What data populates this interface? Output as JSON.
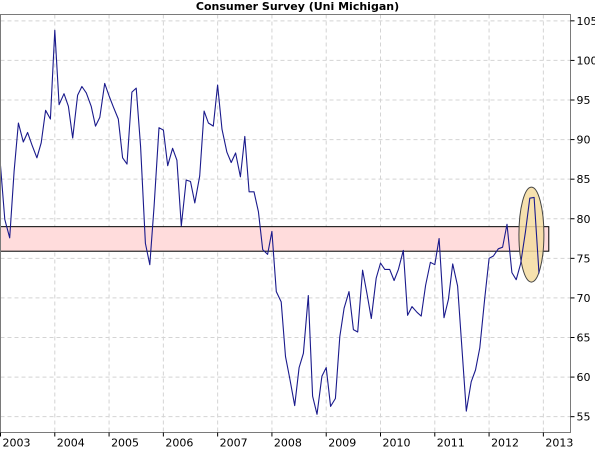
{
  "chart_data": {
    "type": "line",
    "title": "Consumer Survey (Uni Michigan)",
    "xlabel": "",
    "ylabel": "",
    "x_ticks": [
      "2003",
      "2004",
      "2005",
      "2006",
      "2007",
      "2008",
      "2009",
      "2010",
      "2011",
      "2012",
      "2013"
    ],
    "y_ticks": [
      55,
      60,
      65,
      70,
      75,
      80,
      85,
      90,
      95,
      100,
      105
    ],
    "xlim": [
      2003.0,
      2013.5
    ],
    "ylim": [
      53.0,
      105.8
    ],
    "y_axis_position": "right",
    "grid": true,
    "series_color": "#1a1a8c",
    "band_color": "#ffdcdc",
    "highlight_color": "#f5dca0",
    "band": {
      "y_low": 75.9,
      "y_high": 79.0,
      "x_start": 2003.0,
      "x_end": 2013.1
    },
    "highlight_ellipse": {
      "x_center": 2012.78,
      "y_center": 78.0,
      "x_radius": 0.23,
      "y_radius": 6.0
    },
    "series": [
      {
        "x": [
          2003.0,
          2003.08,
          2003.17,
          2003.25,
          2003.33,
          2003.42,
          2003.5,
          2003.58,
          2003.67,
          2003.75,
          2003.83,
          2003.92,
          2004.0,
          2004.08,
          2004.17,
          2004.25,
          2004.33,
          2004.42,
          2004.5,
          2004.58,
          2004.67,
          2004.75,
          2004.83,
          2004.92,
          2005.0,
          2005.08,
          2005.17,
          2005.25,
          2005.33,
          2005.42,
          2005.5,
          2005.58,
          2005.67,
          2005.75,
          2005.83,
          2005.92,
          2006.0,
          2006.08,
          2006.17,
          2006.25,
          2006.33,
          2006.42,
          2006.5,
          2006.58,
          2006.67,
          2006.75,
          2006.83,
          2006.92,
          2007.0,
          2007.08,
          2007.17,
          2007.25,
          2007.33,
          2007.42,
          2007.5,
          2007.58,
          2007.67,
          2007.75,
          2007.83,
          2007.92,
          2008.0,
          2008.08,
          2008.17,
          2008.25,
          2008.33,
          2008.42,
          2008.5,
          2008.58,
          2008.67,
          2008.75,
          2008.83,
          2008.92,
          2009.0,
          2009.08,
          2009.17,
          2009.25,
          2009.33,
          2009.42,
          2009.5,
          2009.58,
          2009.67,
          2009.75,
          2009.83,
          2009.92,
          2010.0,
          2010.08,
          2010.17,
          2010.25,
          2010.33,
          2010.42,
          2010.5,
          2010.58,
          2010.67,
          2010.75,
          2010.83,
          2010.92,
          2011.0,
          2011.08,
          2011.17,
          2011.25,
          2011.33,
          2011.42,
          2011.5,
          2011.58,
          2011.67,
          2011.75,
          2011.83,
          2011.92,
          2012.0,
          2012.08,
          2012.17,
          2012.25,
          2012.33,
          2012.42,
          2012.5,
          2012.58,
          2012.67,
          2012.75,
          2012.83,
          2012.92
        ],
        "y": [
          86.7,
          79.9,
          77.6,
          86.0,
          92.1,
          89.7,
          90.9,
          89.3,
          87.7,
          89.6,
          93.7,
          92.6,
          103.8,
          94.4,
          95.8,
          94.2,
          90.2,
          95.6,
          96.7,
          95.9,
          94.2,
          91.7,
          92.8,
          97.1,
          95.5,
          94.1,
          92.6,
          87.7,
          86.9,
          96.0,
          96.5,
          89.1,
          76.9,
          74.2,
          81.6,
          91.5,
          91.2,
          86.7,
          88.9,
          87.4,
          79.1,
          84.9,
          84.7,
          82.0,
          85.4,
          93.6,
          92.1,
          91.7,
          96.9,
          91.3,
          88.4,
          87.1,
          88.3,
          85.3,
          90.4,
          83.4,
          83.4,
          80.9,
          76.1,
          75.5,
          78.4,
          70.8,
          69.5,
          62.6,
          59.8,
          56.4,
          61.2,
          63.0,
          70.3,
          57.6,
          55.3,
          60.1,
          61.2,
          56.3,
          57.3,
          65.1,
          68.7,
          70.8,
          66.0,
          65.7,
          73.5,
          70.6,
          67.4,
          72.5,
          74.4,
          73.6,
          73.6,
          72.2,
          73.6,
          76.0,
          67.8,
          68.9,
          68.2,
          67.7,
          71.6,
          74.5,
          74.2,
          77.5,
          67.5,
          69.8,
          74.3,
          71.5,
          63.7,
          55.7,
          59.4,
          60.9,
          63.7,
          69.9,
          75.0,
          75.3,
          76.2,
          76.4,
          79.3,
          73.2,
          72.3,
          74.3,
          78.3,
          82.6,
          82.7,
          73.1
        ]
      }
    ]
  }
}
